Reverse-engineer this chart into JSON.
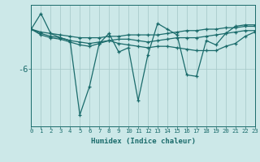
{
  "xlabel": "Humidex (Indice chaleur)",
  "ylabel": "",
  "background_color": "#cce8e8",
  "line_color": "#1a6b6b",
  "grid_color": "#aacccc",
  "x_values": [
    0,
    1,
    2,
    3,
    4,
    5,
    6,
    7,
    8,
    9,
    10,
    11,
    12,
    13,
    14,
    15,
    16,
    17,
    18,
    19,
    20,
    21,
    22,
    23
  ],
  "series": [
    [
      -3.2,
      -2.1,
      -3.5,
      -3.8,
      -4.0,
      -9.2,
      -7.2,
      -4.2,
      -3.5,
      -4.8,
      -4.5,
      -8.2,
      -5.0,
      -2.8,
      -3.2,
      -3.6,
      -6.4,
      -6.5,
      -4.0,
      -4.3,
      -3.5,
      -3.0,
      -2.9,
      -2.9
    ],
    [
      -3.2,
      -3.6,
      -3.8,
      -3.9,
      -4.1,
      -4.3,
      -4.4,
      -4.2,
      -4.0,
      -4.2,
      -4.3,
      -4.4,
      -4.5,
      -4.4,
      -4.4,
      -4.5,
      -4.6,
      -4.7,
      -4.7,
      -4.7,
      -4.4,
      -4.2,
      -3.7,
      -3.4
    ],
    [
      -3.2,
      -3.5,
      -3.7,
      -3.8,
      -4.0,
      -4.1,
      -4.2,
      -4.1,
      -4.0,
      -3.9,
      -3.9,
      -4.0,
      -4.1,
      -4.0,
      -3.9,
      -3.8,
      -3.8,
      -3.8,
      -3.7,
      -3.6,
      -3.5,
      -3.4,
      -3.3,
      -3.3
    ],
    [
      -3.2,
      -3.4,
      -3.5,
      -3.6,
      -3.7,
      -3.8,
      -3.8,
      -3.8,
      -3.7,
      -3.7,
      -3.6,
      -3.6,
      -3.6,
      -3.6,
      -3.5,
      -3.4,
      -3.3,
      -3.3,
      -3.2,
      -3.2,
      -3.1,
      -3.1,
      -3.0,
      -3.0
    ]
  ],
  "ytick_values": [
    -6
  ],
  "ytick_labels": [
    "-6"
  ],
  "ylim": [
    -10.0,
    -1.5
  ],
  "xlim": [
    0,
    23
  ],
  "xlabel_fontsize": 6.5,
  "xtick_fontsize": 5.2,
  "ytick_fontsize": 7.5
}
